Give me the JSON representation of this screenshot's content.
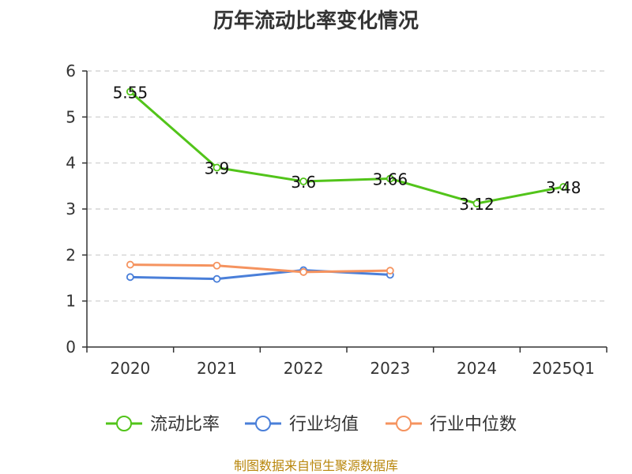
{
  "title": "历年流动比率变化情况",
  "source": "制图数据来自恒生聚源数据库",
  "chart_data": {
    "type": "line",
    "title": "历年流动比率变化情况",
    "categories": [
      "2020",
      "2021",
      "2022",
      "2023",
      "2024",
      "2025Q1"
    ],
    "ylim": [
      0,
      6
    ],
    "yticks": [
      "0",
      "1",
      "2",
      "3",
      "4",
      "5",
      "6"
    ],
    "grid": true,
    "legend_position": "bottom",
    "series": [
      {
        "name": "流动比率",
        "color": "#52c41a",
        "values": [
          5.55,
          3.9,
          3.6,
          3.66,
          3.12,
          3.48
        ],
        "labels": [
          "5.55",
          "3.9",
          "3.6",
          "3.66",
          "3.12",
          "3.48"
        ]
      },
      {
        "name": "行业均值",
        "color": "#4a7fd9",
        "values": [
          1.52,
          1.48,
          1.67,
          1.57,
          null,
          null
        ]
      },
      {
        "name": "行业中位数",
        "color": "#f5935f",
        "values": [
          1.79,
          1.77,
          1.63,
          1.66,
          null,
          null
        ]
      }
    ]
  }
}
